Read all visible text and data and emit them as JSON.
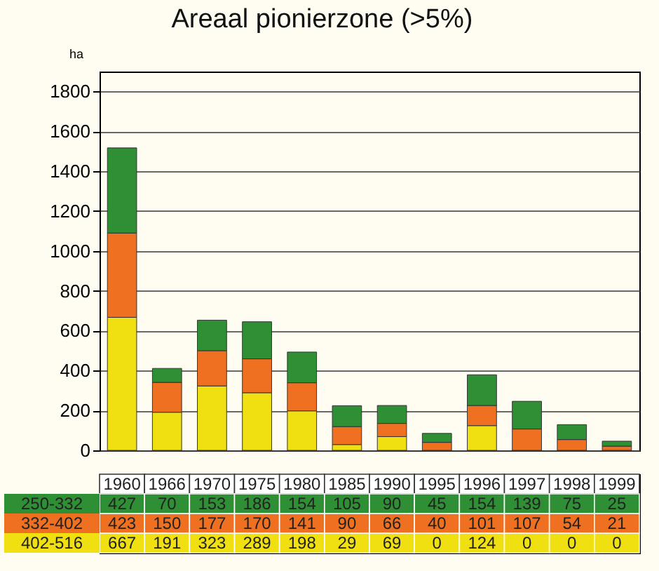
{
  "chart_data": {
    "type": "bar",
    "title": "Areaal pionierzone (>5%)",
    "ylabel": "ha",
    "categories": [
      "1960",
      "1966",
      "1970",
      "1975",
      "1980",
      "1985",
      "1990",
      "1995",
      "1996",
      "1997",
      "1998",
      "1999"
    ],
    "stacked": true,
    "data_labels": true,
    "legend": "bottom",
    "grid": "y",
    "ylim": [
      0,
      1900
    ],
    "yticks": [
      0,
      200,
      400,
      600,
      800,
      1000,
      1200,
      1400,
      1600,
      1800
    ],
    "series": [
      {
        "name": "402-516",
        "color": "#f0e012",
        "values": [
          667,
          191,
          323,
          289,
          198,
          29,
          69,
          0,
          124,
          0,
          0,
          0
        ]
      },
      {
        "name": "332-402",
        "color": "#ee7020",
        "values": [
          423,
          150,
          177,
          170,
          141,
          90,
          66,
          40,
          101,
          107,
          54,
          21
        ]
      },
      {
        "name": "250-332",
        "color": "#2f8f35",
        "values": [
          427,
          70,
          153,
          186,
          154,
          105,
          90,
          45,
          154,
          139,
          75,
          25
        ]
      }
    ]
  }
}
